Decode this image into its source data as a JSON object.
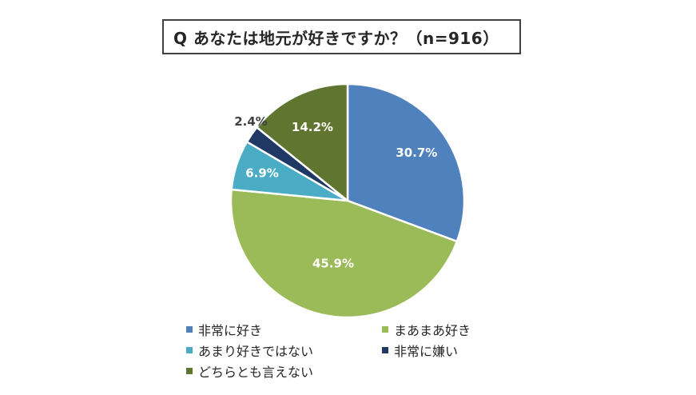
{
  "title": "Q あなたは地元が好きですか？（n=916）",
  "chart_data": {
    "type": "pie",
    "categories": [
      "非常に好き",
      "まあまあ好き",
      "あまり好きではない",
      "非常に嫌い",
      "どちらとも言えない"
    ],
    "values": [
      30.7,
      45.9,
      6.9,
      2.4,
      14.2
    ],
    "labels": [
      "30.7%",
      "45.9%",
      "6.9%",
      "2.4%",
      "14.2%"
    ],
    "colors": [
      "#4f81bd",
      "#9bbb59",
      "#4bacc6",
      "#1f3864",
      "#5f7530"
    ],
    "start_angle": "12 o'clock",
    "direction": "clockwise",
    "legend_position": "bottom"
  },
  "legend": [
    {
      "label": "非常に好き",
      "color": "#4f81bd"
    },
    {
      "label": "まあまあ好き",
      "color": "#9bbb59"
    },
    {
      "label": "あまり好きではない",
      "color": "#4bacc6"
    },
    {
      "label": "非常に嫌い",
      "color": "#1f3864"
    },
    {
      "label": "どちらとも言えない",
      "color": "#5f7530"
    }
  ]
}
